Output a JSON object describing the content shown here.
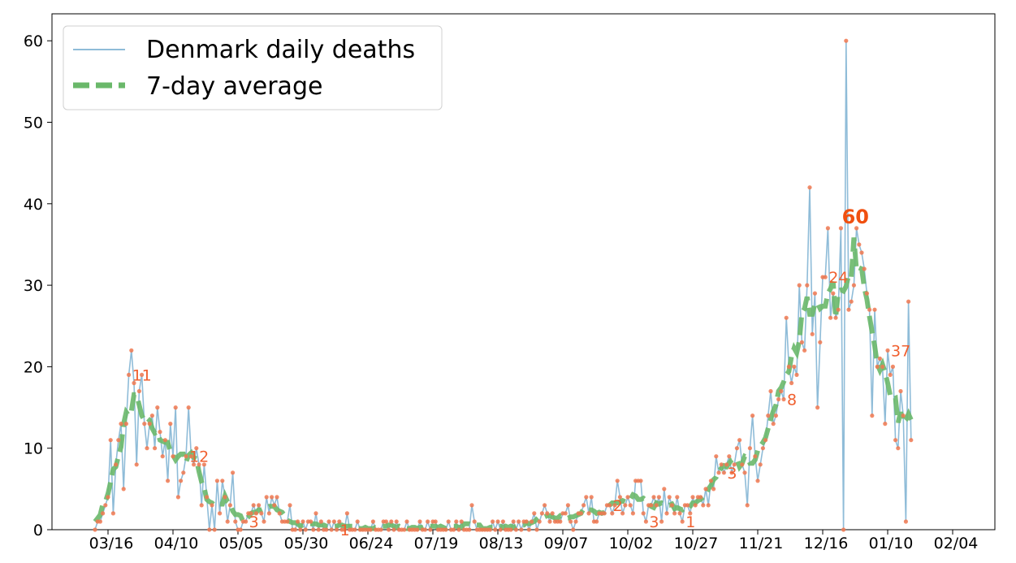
{
  "chart_data": {
    "type": "line",
    "title": "",
    "xlabel": "",
    "ylabel": "",
    "start_date": "2020-03-11",
    "ylim": [
      0,
      63
    ],
    "yticks": [
      0,
      10,
      20,
      30,
      40,
      50,
      60
    ],
    "xticks": [
      {
        "label": "03/16",
        "day": 5
      },
      {
        "label": "04/10",
        "day": 30
      },
      {
        "label": "05/05",
        "day": 55
      },
      {
        "label": "05/30",
        "day": 80
      },
      {
        "label": "06/24",
        "day": 105
      },
      {
        "label": "07/19",
        "day": 130
      },
      {
        "label": "08/13",
        "day": 155
      },
      {
        "label": "09/07",
        "day": 180
      },
      {
        "label": "10/02",
        "day": 205
      },
      {
        "label": "10/27",
        "day": 230
      },
      {
        "label": "11/21",
        "day": 255
      },
      {
        "label": "12/16",
        "day": 280
      },
      {
        "label": "01/10",
        "day": 305
      },
      {
        "label": "02/04",
        "day": 330
      }
    ],
    "grid": false,
    "legend_position": "top-left",
    "series": [
      {
        "name": "Denmark daily deaths",
        "color": "#8fbcd8",
        "marker_color": "#f07850",
        "values": [
          0,
          1,
          1,
          2,
          3,
          4,
          11,
          2,
          8,
          11,
          13,
          5,
          13,
          19,
          22,
          18,
          8,
          17,
          19,
          13,
          10,
          13,
          14,
          10,
          15,
          12,
          9,
          11,
          6,
          13,
          9,
          15,
          4,
          6,
          7,
          9,
          15,
          9,
          8,
          10,
          8,
          3,
          8,
          4,
          0,
          3,
          0,
          6,
          2,
          6,
          4,
          1,
          3,
          7,
          1,
          0,
          0,
          1,
          1,
          2,
          2,
          3,
          2,
          3,
          2,
          1,
          4,
          2,
          4,
          3,
          4,
          2,
          1,
          1,
          1,
          3,
          0,
          0,
          1,
          0,
          1,
          0,
          1,
          1,
          0,
          2,
          0,
          1,
          0,
          0,
          1,
          0,
          1,
          0,
          1,
          0,
          0,
          2,
          0,
          0,
          0,
          1,
          0,
          0,
          0,
          0,
          0,
          1,
          0,
          0,
          0,
          1,
          1,
          0,
          1,
          0,
          1,
          0,
          0,
          0,
          1,
          0,
          0,
          0,
          0,
          1,
          0,
          0,
          1,
          0,
          1,
          1,
          0,
          0,
          0,
          0,
          1,
          0,
          0,
          1,
          0,
          1,
          0,
          0,
          0,
          3,
          1,
          0,
          0,
          0,
          0,
          0,
          0,
          1,
          0,
          1,
          0,
          1,
          0,
          0,
          0,
          1,
          0,
          1,
          0,
          1,
          1,
          0,
          1,
          2,
          0,
          1,
          2,
          3,
          2,
          1,
          2,
          1,
          1,
          1,
          2,
          2,
          3,
          1,
          0,
          1,
          2,
          2,
          3,
          4,
          2,
          4,
          1,
          1,
          2,
          2,
          2,
          3,
          3,
          2,
          3,
          6,
          4,
          2,
          3,
          4,
          3,
          2,
          6,
          6,
          6,
          2,
          1,
          3,
          3,
          4,
          3,
          4,
          1,
          5,
          2,
          4,
          3,
          2,
          4,
          2,
          1,
          3,
          3,
          2,
          4,
          3,
          4,
          4,
          3,
          5,
          3,
          6,
          5,
          9,
          7,
          8,
          7,
          8,
          9,
          7,
          8,
          10,
          11,
          8,
          7,
          3,
          10,
          14,
          9,
          6,
          8,
          10,
          11,
          14,
          17,
          13,
          14,
          16,
          17,
          16,
          26,
          20,
          18,
          20,
          19,
          30,
          23,
          22,
          30,
          42,
          24,
          29,
          15,
          23,
          31,
          31,
          37,
          26,
          29,
          26,
          27,
          37,
          0,
          60,
          27,
          28,
          30,
          37,
          35,
          34,
          32,
          29,
          27,
          14,
          27,
          20,
          21,
          20,
          13,
          22,
          19,
          20,
          11,
          10,
          17,
          14,
          1,
          28,
          11
        ],
        "label_points": [
          {
            "day": 13,
            "text": "11"
          },
          {
            "day": 35,
            "text": "12"
          },
          {
            "day": 58,
            "text": "3"
          },
          {
            "day": 93,
            "text": "1"
          },
          {
            "day": 198,
            "text": "2"
          },
          {
            "day": 212,
            "text": "3"
          },
          {
            "day": 226,
            "text": "1"
          },
          {
            "day": 242,
            "text": "3"
          },
          {
            "day": 265,
            "text": "8"
          },
          {
            "day": 281,
            "text": "24"
          },
          {
            "day": 293,
            "text": "60"
          },
          {
            "day": 305,
            "text": "37"
          },
          {
            "day": 324,
            "text": "11"
          }
        ]
      },
      {
        "name": "7-day average",
        "color": "#6ab86a",
        "style": "dashed"
      }
    ]
  }
}
